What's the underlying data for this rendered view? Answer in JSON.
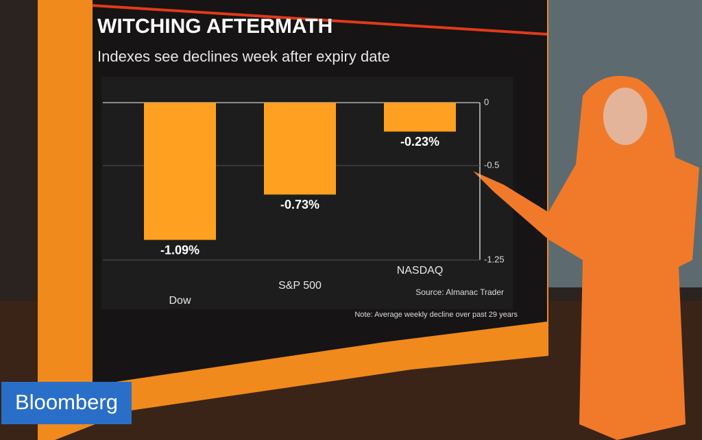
{
  "logo": "Bloomberg",
  "chart_data": {
    "type": "bar",
    "title": "WITCHING AFTERMATH",
    "subtitle": "Indexes see declines week after expiry date",
    "categories": [
      "Dow",
      "S&P 500",
      "NASDAQ"
    ],
    "values": [
      -1.09,
      -0.73,
      -0.23
    ],
    "value_labels": [
      "-1.09%",
      "-0.73%",
      "-0.23%"
    ],
    "color": "#ffa020",
    "ylim": [
      -1.25,
      0
    ],
    "yticks": [
      0,
      -0.5,
      -1.25
    ],
    "grid": true,
    "source": "Source: Almanac Trader",
    "note": "Note: Average weekly decline over past 29 years"
  }
}
